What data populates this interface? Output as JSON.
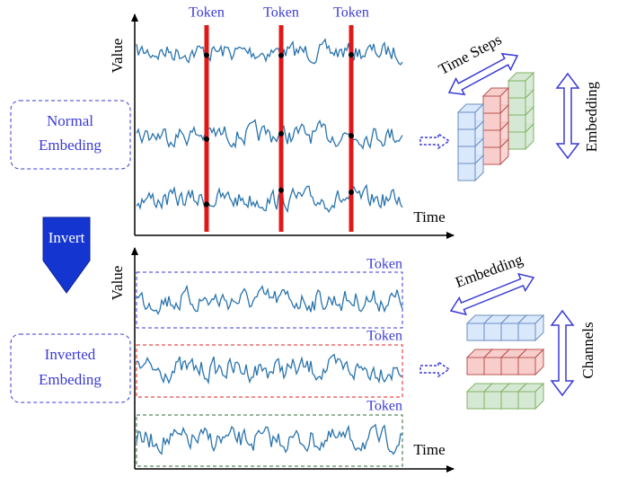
{
  "top": {
    "axis_y": "Value",
    "axis_x": "Time",
    "tokens": [
      "Token",
      "Token",
      "Token"
    ],
    "label": [
      "Normal",
      "Embeding"
    ],
    "cube_arrows": {
      "diagonal": "Time Steps",
      "vertical": "Embedding"
    }
  },
  "invert": "Invert",
  "bottom": {
    "axis_y": "Value",
    "axis_x": "Time",
    "tokens": [
      "Token",
      "Token",
      "Token"
    ],
    "label": [
      "Inverted",
      "Embeding"
    ],
    "cube_arrows": {
      "diagonal": "Embedding",
      "vertical": "Channels"
    }
  }
}
